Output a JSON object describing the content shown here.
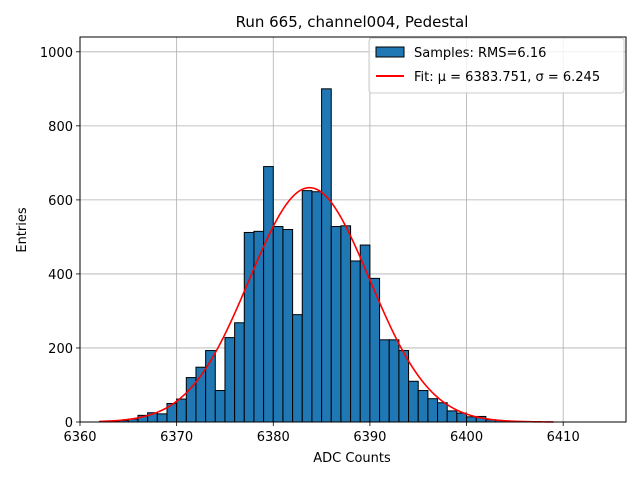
{
  "chart_data": {
    "type": "bar",
    "title": "Run 665, channel004, Pedestal",
    "xlabel": "ADC Counts",
    "ylabel": "Entries",
    "xlim": [
      6360,
      6416.5
    ],
    "ylim": [
      0,
      1040
    ],
    "x_ticks": [
      6360,
      6370,
      6380,
      6390,
      6400,
      6410
    ],
    "y_ticks": [
      0,
      200,
      400,
      600,
      800,
      1000
    ],
    "grid": true,
    "legend_position": "top-right",
    "histogram": {
      "name": "Samples: RMS=6.16",
      "color": "#1f77b4",
      "edge_color": "#000000",
      "bin_width": 1,
      "bins": [
        6362,
        6363,
        6364,
        6365,
        6366,
        6367,
        6368,
        6369,
        6370,
        6371,
        6372,
        6373,
        6374,
        6375,
        6376,
        6377,
        6378,
        6379,
        6380,
        6381,
        6382,
        6383,
        6384,
        6385,
        6386,
        6387,
        6388,
        6389,
        6390,
        6391,
        6392,
        6393,
        6394,
        6395,
        6396,
        6397,
        6398,
        6399,
        6400,
        6401,
        6402,
        6403,
        6404,
        6405
      ],
      "counts": [
        1,
        2,
        4,
        8,
        18,
        25,
        22,
        50,
        62,
        120,
        148,
        193,
        85,
        228,
        268,
        512,
        515,
        690,
        528,
        520,
        290,
        625,
        622,
        900,
        528,
        530,
        435,
        478,
        388,
        222,
        222,
        193,
        110,
        85,
        63,
        52,
        30,
        24,
        14,
        15,
        6,
        4,
        2,
        1
      ]
    },
    "fit": {
      "name": "Fit: μ = 6383.751, σ = 6.245",
      "color": "#ff0000",
      "mu": 6383.751,
      "sigma": 6.245,
      "amplitude": 633,
      "x_range": [
        6362,
        6409
      ]
    }
  }
}
